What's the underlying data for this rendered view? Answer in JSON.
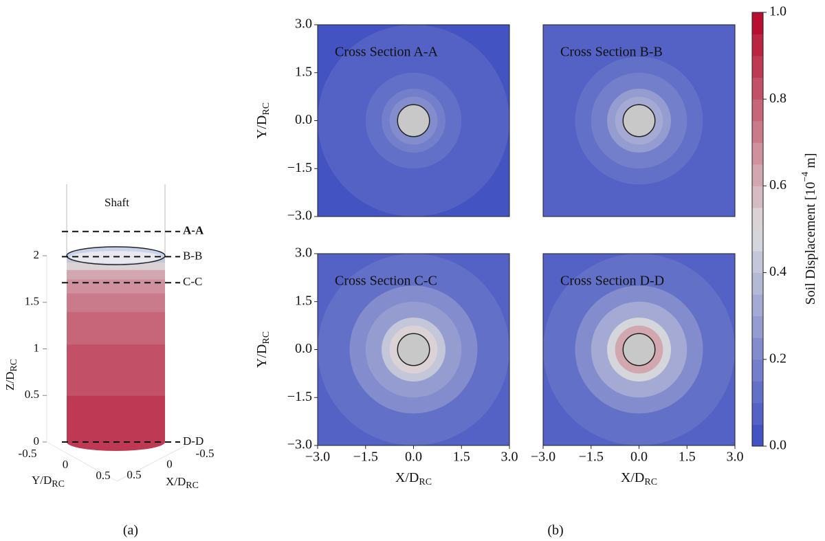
{
  "panel_a": {
    "caption": "(a)",
    "shaft_label": "Shaft",
    "height": 2,
    "zlabel": "Z/D",
    "zlabel_sub": "RC",
    "ylabel": "Y/D",
    "ylabel_sub": "RC",
    "xlabel": "X/D",
    "xlabel_sub": "RC",
    "zticks": [
      0,
      0.5,
      1,
      1.5,
      2
    ],
    "yticks": [
      -0.5,
      0,
      0.5
    ],
    "xticks": [
      -0.5,
      0,
      0.5
    ],
    "sections": [
      {
        "label": "A-A",
        "z": 2.26
      },
      {
        "label": "B-B",
        "z": 1.99
      },
      {
        "label": "C-C",
        "z": 1.71
      },
      {
        "label": "D-D",
        "z": 0
      }
    ],
    "surface": {
      "z": [
        0,
        0.5,
        1.05,
        1.4,
        1.6,
        1.75,
        1.85,
        1.93
      ],
      "values": [
        0.85,
        0.8,
        0.75,
        0.7,
        0.65,
        0.6,
        0.5,
        0.4
      ]
    }
  },
  "panel_b": {
    "caption": "(b)",
    "xlabel": "X/D",
    "xlabel_sub": "RC",
    "ylabel": "Y/D",
    "ylabel_sub": "RC",
    "xlim": [
      -3,
      3
    ],
    "ylim": [
      -3,
      3
    ],
    "xticks": [
      {
        "value": -3,
        "label": "−3.0"
      },
      {
        "value": -1.5,
        "label": "−1.5"
      },
      {
        "value": 0,
        "label": "0.0"
      },
      {
        "value": 1.5,
        "label": "1.5"
      },
      {
        "value": 3,
        "label": "3.0"
      }
    ],
    "yticks": [
      {
        "value": -3,
        "label": "−3.0"
      },
      {
        "value": -1.5,
        "label": "−1.5"
      },
      {
        "value": 0,
        "label": "0.0"
      },
      {
        "value": 1.5,
        "label": "1.5"
      },
      {
        "value": 3,
        "label": "3.0"
      }
    ],
    "pile_radius": 0.5,
    "plots": [
      {
        "title": "Cross Section A-A",
        "r": [
          0.5,
          0.75,
          1,
          1.5,
          2,
          3,
          4.25
        ],
        "values": [
          0.3,
          0.22,
          0.17,
          0.12,
          0.09,
          0.06,
          0.04
        ]
      },
      {
        "title": "Cross Section B-B",
        "r": [
          0.5,
          0.75,
          1,
          1.5,
          2,
          3,
          4.25
        ],
        "values": [
          0.45,
          0.33,
          0.26,
          0.18,
          0.13,
          0.08,
          0.05
        ]
      },
      {
        "title": "Cross Section C-C",
        "r": [
          0.5,
          0.75,
          1,
          1.5,
          2,
          3,
          4.25
        ],
        "values": [
          0.7,
          0.5,
          0.4,
          0.28,
          0.2,
          0.12,
          0.07
        ]
      },
      {
        "title": "Cross Section D-D",
        "r": [
          0.5,
          0.75,
          1,
          1.5,
          2,
          3,
          4.25
        ],
        "values": [
          0.95,
          0.62,
          0.48,
          0.33,
          0.24,
          0.14,
          0.08
        ]
      }
    ],
    "colorbar": {
      "label": "Soil Displacement [10",
      "label_exp": "−4",
      "label_unit": " m]",
      "lim": [
        0,
        1
      ],
      "levels": 20,
      "colors": [
        "#3b4cc0",
        "#dcdddd",
        "#b40426"
      ],
      "ticks": [
        {
          "value": 0,
          "label": "0.0"
        },
        {
          "value": 0.2,
          "label": "0.2"
        },
        {
          "value": 0.4,
          "label": "0.4"
        },
        {
          "value": 0.6,
          "label": "0.6"
        },
        {
          "value": 0.8,
          "label": "0.8"
        },
        {
          "value": 1,
          "label": "1.0"
        }
      ]
    }
  }
}
